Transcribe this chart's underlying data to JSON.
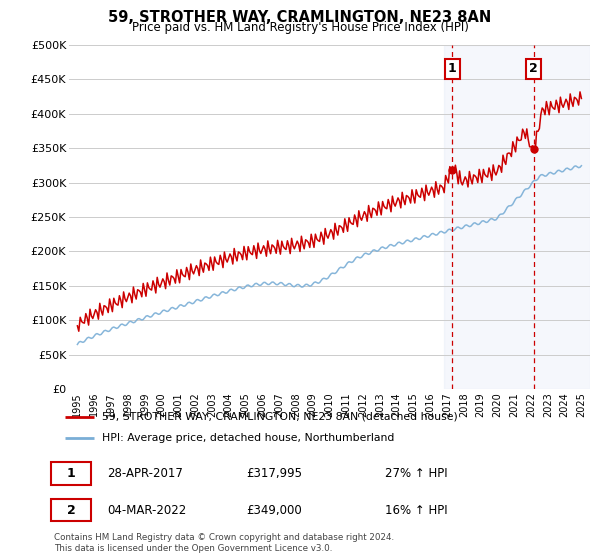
{
  "title": "59, STROTHER WAY, CRAMLINGTON, NE23 8AN",
  "subtitle": "Price paid vs. HM Land Registry's House Price Index (HPI)",
  "ylabel_ticks": [
    "£0",
    "£50K",
    "£100K",
    "£150K",
    "£200K",
    "£250K",
    "£300K",
    "£350K",
    "£400K",
    "£450K",
    "£500K"
  ],
  "ytick_values": [
    0,
    50000,
    100000,
    150000,
    200000,
    250000,
    300000,
    350000,
    400000,
    450000,
    500000
  ],
  "ylim": [
    0,
    500000
  ],
  "xlim_start": 1994.5,
  "xlim_end": 2025.5,
  "sale1_x": 2017.32,
  "sale1_y": 317995,
  "sale2_x": 2022.17,
  "sale2_y": 349000,
  "red_line_color": "#cc0000",
  "blue_line_color": "#7aaed6",
  "shaded_region_alpha": 0.18,
  "shaded_region_color": "#c8d8f0",
  "marker_box_color": "#cc0000",
  "legend_line1": "59, STROTHER WAY, CRAMLINGTON, NE23 8AN (detached house)",
  "legend_line2": "HPI: Average price, detached house, Northumberland",
  "table_row1": [
    "1",
    "28-APR-2017",
    "£317,995",
    "27% ↑ HPI"
  ],
  "table_row2": [
    "2",
    "04-MAR-2022",
    "£349,000",
    "16% ↑ HPI"
  ],
  "footer": "Contains HM Land Registry data © Crown copyright and database right 2024.\nThis data is licensed under the Open Government Licence v3.0.",
  "background_color": "#ffffff",
  "grid_color": "#cccccc"
}
